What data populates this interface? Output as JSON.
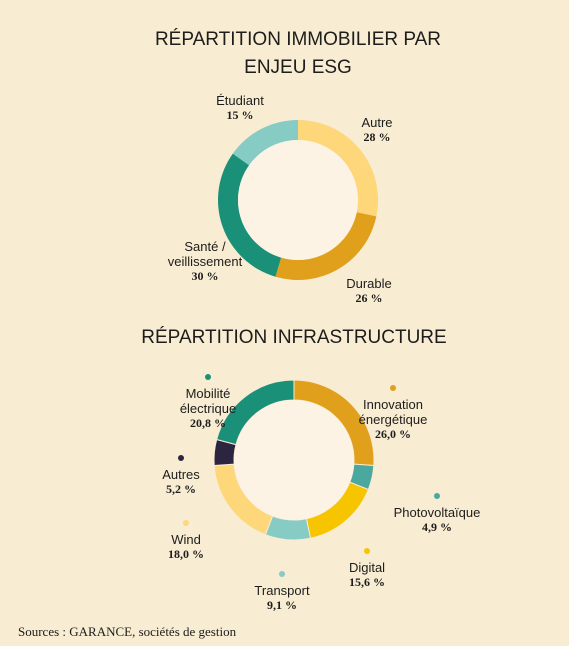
{
  "chart_data": [
    {
      "type": "donut",
      "title": "RÉPARTITION IMMOBILIER PAR ENJEU ESG",
      "categories": [
        "Autre",
        "Durable",
        "Santé / veillissement",
        "Étudiant"
      ],
      "values": [
        28,
        26,
        30,
        15
      ],
      "value_labels": [
        "28 %",
        "26 %",
        "30 %",
        "15 %"
      ],
      "colors": [
        "#fdd77a",
        "#e0a01c",
        "#1a9079",
        "#86cbc4"
      ]
    },
    {
      "type": "donut",
      "title": "RÉPARTITION INFRASTRUCTURE",
      "categories": [
        "Innovation énergétique",
        "Photovoltaïque",
        "Digital",
        "Transport",
        "Wind",
        "Autres",
        "Mobilité électrique"
      ],
      "values": [
        26.0,
        4.9,
        15.6,
        9.1,
        18.0,
        5.2,
        20.8
      ],
      "value_labels": [
        "26,0 %",
        "4,9 %",
        "15,6 %",
        "9,1 %",
        "18,0 %",
        "5,2 %",
        "20,8 %"
      ],
      "colors": [
        "#e0a01c",
        "#4aa89f",
        "#f7c400",
        "#86cbc4",
        "#fdd77a",
        "#2c2540",
        "#1a9079"
      ]
    }
  ],
  "source": "Sources : GARANCE, sociétés de gestion"
}
